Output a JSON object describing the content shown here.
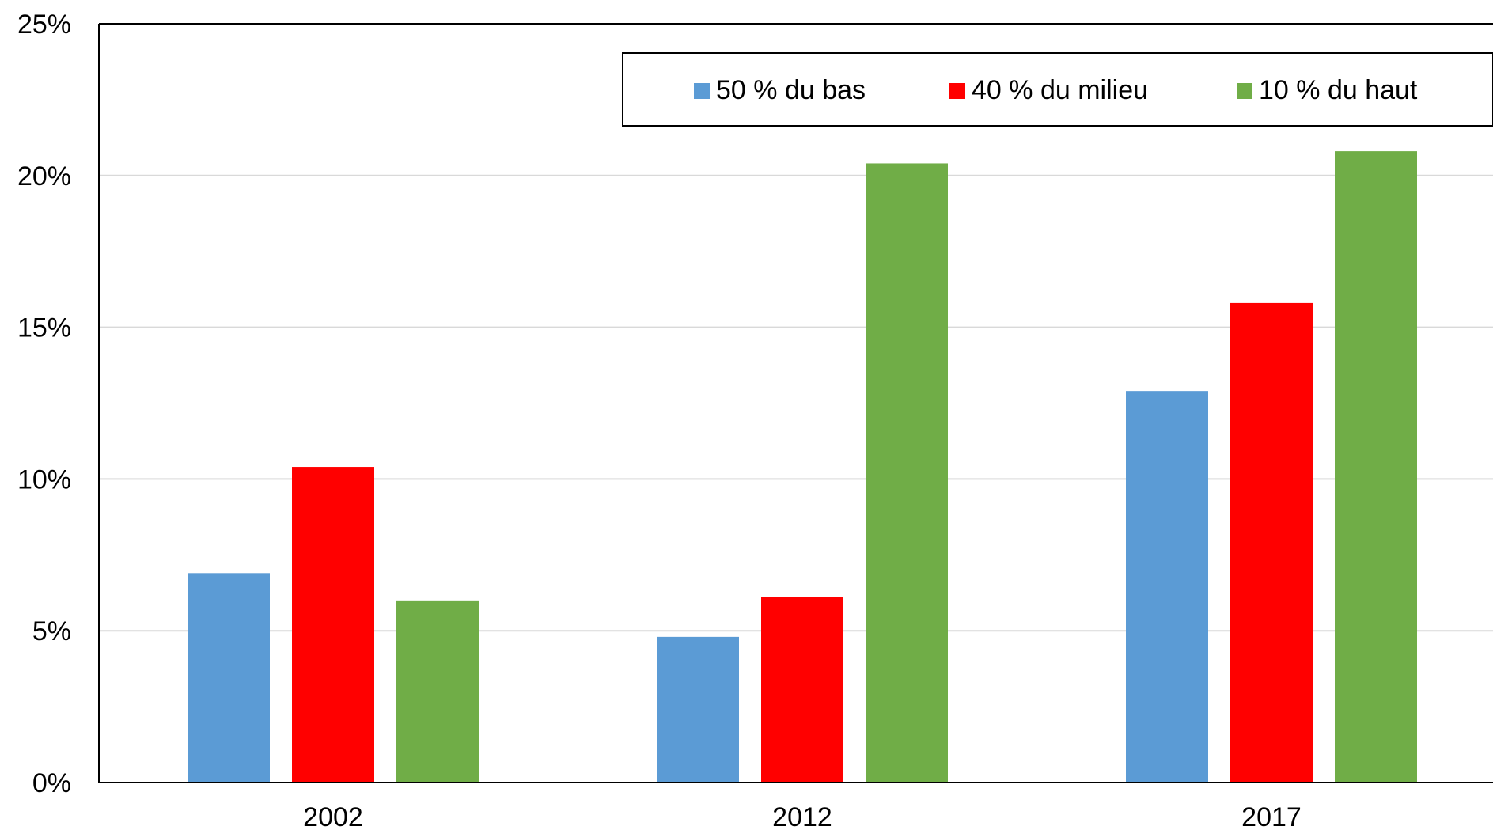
{
  "chart_data": {
    "type": "bar",
    "title": "",
    "xlabel": "",
    "ylabel": "",
    "categories": [
      "2002",
      "2012",
      "2017"
    ],
    "ylim": [
      0,
      25
    ],
    "yticks": [
      0,
      5,
      10,
      15,
      20,
      25
    ],
    "ytick_labels": [
      "0%",
      "5%",
      "10%",
      "15%",
      "20%",
      "25%"
    ],
    "grid": true,
    "legend_position": "top-right",
    "series": [
      {
        "name": "50 % du bas",
        "color": "#5b9bd5",
        "values": [
          6.9,
          4.8,
          12.9
        ]
      },
      {
        "name": "40 % du milieu",
        "color": "#ff0000",
        "values": [
          10.4,
          6.1,
          15.8
        ]
      },
      {
        "name": "10 % du haut",
        "color": "#70ad47",
        "values": [
          6.0,
          20.4,
          20.8
        ]
      }
    ]
  }
}
